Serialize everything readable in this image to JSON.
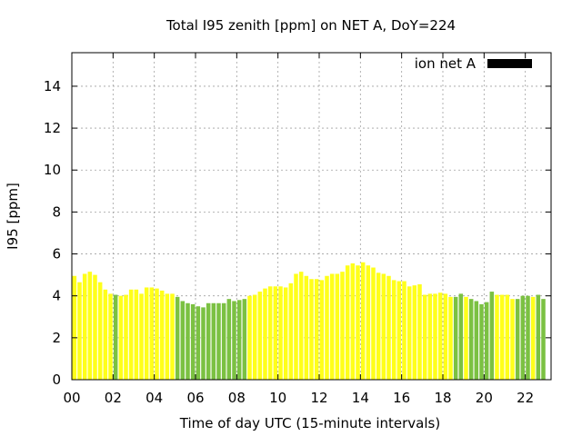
{
  "chart_data": {
    "type": "bar",
    "title": "Total I95 zenith [ppm] on NET A, DoY=224",
    "xlabel": "Time of day UTC (15-minute intervals)",
    "ylabel": "I95 [ppm]",
    "xlim": [
      0,
      23.25
    ],
    "ylim": [
      0,
      15.6
    ],
    "xticks": [
      0,
      2,
      4,
      6,
      8,
      10,
      12,
      14,
      16,
      18,
      20,
      22
    ],
    "xtick_labels": [
      "00",
      "02",
      "04",
      "06",
      "08",
      "10",
      "12",
      "14",
      "16",
      "18",
      "20",
      "22"
    ],
    "yticks": [
      0,
      2,
      4,
      6,
      8,
      10,
      12,
      14
    ],
    "grid": true,
    "legend_position": "top-right",
    "legend": {
      "label": "ion net A",
      "color": "#000000"
    },
    "colors": {
      "high": "#ffff1a",
      "low": "#7bc142"
    },
    "series": [
      {
        "x": [
          0.0,
          0.25,
          0.5,
          0.75,
          1.0,
          1.25,
          1.5,
          1.75,
          2.0,
          2.25,
          2.5,
          2.75,
          3.0,
          3.25,
          3.5,
          3.75,
          4.0,
          4.25,
          4.5,
          4.75,
          5.0,
          5.25,
          5.5,
          5.75,
          6.0,
          6.25,
          6.5,
          6.75,
          7.0,
          7.25,
          7.5,
          7.75,
          8.0,
          8.25,
          8.5,
          8.75,
          9.0,
          9.25,
          9.5,
          9.75,
          10.0,
          10.25,
          10.5,
          10.75,
          11.0,
          11.25,
          11.5,
          11.75,
          12.0,
          12.25,
          12.5,
          12.75,
          13.0,
          13.25,
          13.5,
          13.75,
          14.0,
          14.25,
          14.5,
          14.75,
          15.0,
          15.25,
          15.5,
          15.75,
          16.0,
          16.25,
          16.5,
          16.75,
          17.0,
          17.25,
          17.5,
          17.75,
          18.0,
          18.25,
          18.5,
          18.75,
          19.0,
          19.25,
          19.5,
          19.75,
          20.0,
          20.25,
          20.5,
          20.75,
          21.0,
          21.25,
          21.5,
          21.75,
          22.0,
          22.25,
          22.5,
          22.75
        ],
        "values": [
          4.95,
          4.65,
          5.05,
          5.15,
          5.0,
          4.65,
          4.3,
          4.1,
          4.05,
          4.0,
          4.05,
          4.3,
          4.3,
          4.1,
          4.4,
          4.4,
          4.35,
          4.25,
          4.1,
          4.1,
          3.95,
          3.75,
          3.65,
          3.6,
          3.5,
          3.45,
          3.65,
          3.65,
          3.65,
          3.65,
          3.85,
          3.75,
          3.8,
          3.85,
          4.0,
          4.05,
          4.2,
          4.35,
          4.45,
          4.45,
          4.45,
          4.4,
          4.6,
          5.05,
          5.15,
          4.95,
          4.8,
          4.8,
          4.75,
          4.95,
          5.05,
          5.05,
          5.15,
          5.45,
          5.55,
          5.45,
          5.6,
          5.45,
          5.35,
          5.1,
          5.05,
          4.95,
          4.75,
          4.7,
          4.7,
          4.45,
          4.5,
          4.55,
          4.05,
          4.1,
          4.1,
          4.15,
          4.1,
          3.95,
          3.95,
          4.1,
          3.95,
          3.85,
          3.75,
          3.6,
          3.7,
          4.2,
          4.05,
          4.05,
          4.05,
          3.85,
          3.85,
          4.0,
          4.0,
          3.95,
          4.05,
          3.85
        ],
        "levels": [
          "high",
          "high",
          "high",
          "high",
          "high",
          "high",
          "high",
          "high",
          "low",
          "high",
          "high",
          "high",
          "high",
          "high",
          "high",
          "high",
          "high",
          "high",
          "high",
          "high",
          "low",
          "low",
          "low",
          "low",
          "low",
          "low",
          "low",
          "low",
          "low",
          "low",
          "low",
          "low",
          "low",
          "low",
          "high",
          "high",
          "high",
          "high",
          "high",
          "high",
          "high",
          "high",
          "high",
          "high",
          "high",
          "high",
          "high",
          "high",
          "high",
          "high",
          "high",
          "high",
          "high",
          "high",
          "high",
          "high",
          "high",
          "high",
          "high",
          "high",
          "high",
          "high",
          "high",
          "high",
          "high",
          "high",
          "high",
          "high",
          "high",
          "high",
          "high",
          "high",
          "high",
          "high",
          "low",
          "low",
          "high",
          "low",
          "low",
          "low",
          "low",
          "low",
          "high",
          "high",
          "high",
          "high",
          "low",
          "low",
          "low",
          "high",
          "low",
          "low"
        ]
      }
    ]
  }
}
